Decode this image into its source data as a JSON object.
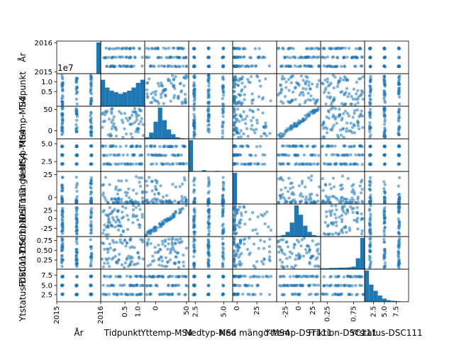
{
  "chart_data": {
    "type": "scatter",
    "variables": [
      "År",
      "Tidpunkt",
      "Yttemp-MS4",
      "Nedtyp-MS4",
      "Ned mängd-MS4",
      "Yttemp-DST111",
      "Friktion-DSC111",
      "Ytstatus-DSC111"
    ],
    "color": "#1f77b4",
    "offset_label": "1e7",
    "diagonal": "histogram",
    "row_ticks": [
      {
        "var": "År",
        "labels": [
          "2016",
          "2015"
        ],
        "values": [
          2016,
          2015
        ]
      },
      {
        "var": "Tidpunkt",
        "labels": [
          "1.0",
          "0.5"
        ],
        "values": [
          1.0,
          0.5
        ]
      },
      {
        "var": "Yttemp-MS4",
        "labels": [
          "50",
          "0"
        ],
        "values": [
          50,
          0
        ]
      },
      {
        "var": "Nedtyp-MS4",
        "labels": [
          "5.0",
          "2.5"
        ],
        "values": [
          5.0,
          2.5
        ]
      },
      {
        "var": "Ned mängd-MS4",
        "labels": [
          "25",
          "0"
        ],
        "values": [
          25,
          0
        ]
      },
      {
        "var": "Yttemp-DST111",
        "labels": [
          "25",
          "0",
          "-25"
        ],
        "values": [
          25,
          0,
          -25
        ]
      },
      {
        "var": "Friktion-DSC111",
        "labels": [
          "0.75",
          "0.50",
          "0.25"
        ],
        "values": [
          0.75,
          0.5,
          0.25
        ]
      },
      {
        "var": "Ytstatus-DSC111",
        "labels": [
          "7.5",
          "5.0",
          "2.5"
        ],
        "values": [
          7.5,
          5.0,
          2.5
        ]
      }
    ],
    "col_ticks": [
      {
        "var": "År",
        "labels": [
          "2015"
        ],
        "values": [
          2015
        ]
      },
      {
        "var": "Tidpunkt",
        "labels": [
          "2016",
          "0.5",
          "1.0"
        ],
        "values": [
          2016,
          0.5,
          1.0
        ]
      },
      {
        "var": "Yttemp-MS4",
        "labels": [
          "0",
          "50"
        ],
        "values": [
          0,
          50
        ]
      },
      {
        "var": "Nedtyp-MS4",
        "labels": [
          "2.5",
          "5.0"
        ],
        "values": [
          2.5,
          5.0
        ]
      },
      {
        "var": "Ned mängd-MS4",
        "labels": [
          "0",
          "25"
        ],
        "values": [
          0,
          25
        ]
      },
      {
        "var": "Yttemp-DST111",
        "labels": [
          "-25",
          "0",
          "25"
        ],
        "values": [
          -25,
          0,
          25
        ]
      },
      {
        "var": "Friktion-DSC111",
        "labels": [
          "0.25",
          "0.75"
        ],
        "values": [
          0.25,
          0.75
        ]
      },
      {
        "var": "Ytstatus-DSC111",
        "labels": [
          "2.5",
          "5.0",
          "7.5"
        ],
        "values": [
          2.5,
          5.0,
          7.5
        ]
      }
    ],
    "histograms": [
      {
        "var": "År",
        "counts": [
          0,
          0,
          0,
          0,
          0,
          0,
          0,
          0,
          0,
          1
        ]
      },
      {
        "var": "Tidpunkt",
        "counts": [
          0.85,
          0.6,
          0.5,
          0.45,
          0.4,
          0.45,
          0.5,
          0.6,
          0.75,
          0.85
        ]
      },
      {
        "var": "Yttemp-MS4",
        "counts": [
          0.05,
          0.2,
          0.55,
          1.0,
          0.6,
          0.3,
          0.15,
          0.05,
          0.02,
          0.01
        ]
      },
      {
        "var": "Nedtyp-MS4",
        "counts": [
          1.0,
          0.0,
          0.0,
          0.04,
          0.0,
          0.0,
          0.02,
          0.0,
          0.0,
          0.01
        ]
      },
      {
        "var": "Ned mängd-MS4",
        "counts": [
          1.0,
          0.02,
          0.01,
          0.0,
          0.0,
          0.0,
          0.0,
          0.0,
          0.0,
          0.0
        ]
      },
      {
        "var": "Yttemp-DST111",
        "counts": [
          0.02,
          0.05,
          0.15,
          0.45,
          1.0,
          0.7,
          0.35,
          0.15,
          0.05,
          0.02
        ]
      },
      {
        "var": "Friktion-DSC111",
        "counts": [
          0.03,
          0.03,
          0.04,
          0.04,
          0.05,
          0.05,
          0.06,
          0.08,
          0.35,
          1.0
        ]
      },
      {
        "var": "Ytstatus-DSC111",
        "counts": [
          1.0,
          0.55,
          0.35,
          0.2,
          0.1,
          0.05,
          0.03,
          0.02,
          0.01,
          0.01
        ]
      }
    ]
  }
}
